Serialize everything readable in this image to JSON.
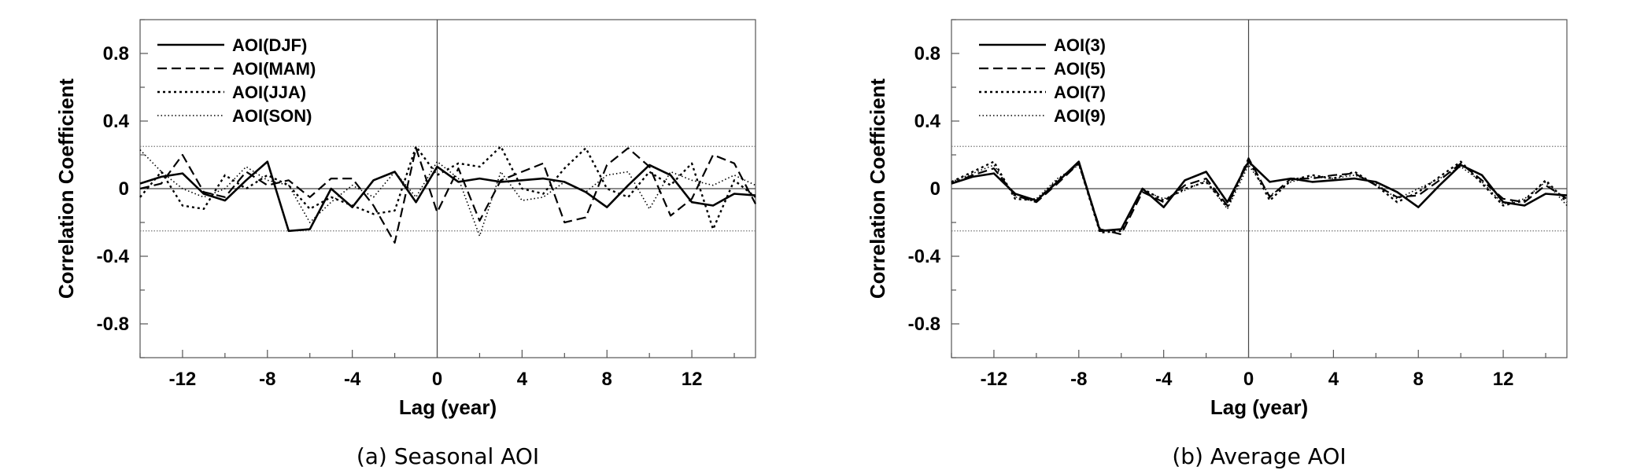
{
  "chart_data": [
    {
      "type": "line",
      "caption": "(a) Seasonal AOI",
      "xlabel": "Lag (year)",
      "ylabel": "Correlation Coefficient",
      "xlim": [
        -14,
        15
      ],
      "ylim": [
        -1.0,
        1.0
      ],
      "xticks": [
        -12,
        -8,
        -4,
        0,
        4,
        8,
        12
      ],
      "yticks": [
        0.8,
        0.4,
        0,
        -0.4,
        -0.8
      ],
      "legend_position": "top-left",
      "significance_level": 0.25,
      "x": [
        -14,
        -13,
        -12,
        -11,
        -10,
        -9,
        -8,
        -7,
        -6,
        -5,
        -4,
        -3,
        -2,
        -1,
        0,
        1,
        2,
        3,
        4,
        5,
        6,
        7,
        8,
        9,
        10,
        11,
        12,
        13,
        14,
        15
      ],
      "series": [
        {
          "name": "AOI(DJF)",
          "dash": "solid",
          "values": [
            0.03,
            0.07,
            0.09,
            -0.03,
            -0.07,
            0.05,
            0.16,
            -0.25,
            -0.24,
            0.0,
            -0.11,
            0.05,
            0.1,
            -0.08,
            0.13,
            0.04,
            0.06,
            0.04,
            0.05,
            0.06,
            0.04,
            -0.02,
            -0.11,
            0.02,
            0.14,
            0.08,
            -0.08,
            -0.1,
            -0.03,
            -0.04
          ]
        },
        {
          "name": "AOI(MAM)",
          "dash": "dashed",
          "values": [
            0.0,
            0.03,
            0.2,
            -0.02,
            -0.05,
            0.1,
            0.02,
            0.05,
            -0.05,
            0.06,
            0.06,
            -0.1,
            -0.32,
            0.24,
            -0.14,
            0.12,
            -0.19,
            0.05,
            0.1,
            0.15,
            -0.2,
            -0.17,
            0.14,
            0.24,
            0.13,
            -0.16,
            -0.06,
            0.2,
            0.15,
            -0.09
          ]
        },
        {
          "name": "AOI(JJA)",
          "dash": "dotted",
          "values": [
            -0.05,
            0.1,
            -0.1,
            -0.12,
            0.08,
            0.0,
            0.08,
            0.02,
            -0.12,
            -0.05,
            -0.1,
            -0.15,
            -0.13,
            0.25,
            0.08,
            0.15,
            0.13,
            0.25,
            0.0,
            -0.03,
            0.12,
            0.24,
            0.0,
            -0.05,
            0.1,
            0.02,
            0.15,
            -0.24,
            0.05,
            -0.05
          ]
        },
        {
          "name": "AOI(SON)",
          "dash": "fine",
          "values": [
            0.23,
            0.1,
            0.0,
            -0.05,
            0.0,
            0.13,
            0.05,
            0.02,
            -0.2,
            -0.08,
            0.02,
            -0.05,
            0.1,
            -0.05,
            0.16,
            0.06,
            -0.28,
            0.1,
            -0.07,
            -0.05,
            0.04,
            -0.02,
            0.08,
            0.1,
            -0.12,
            0.1,
            0.05,
            0.02,
            0.08,
            0.02
          ]
        }
      ]
    },
    {
      "type": "line",
      "caption": "(b) Average AOI",
      "xlabel": "Lag (year)",
      "ylabel": "Correlation Coefficient",
      "xlim": [
        -14,
        15
      ],
      "ylim": [
        -1.0,
        1.0
      ],
      "xticks": [
        -12,
        -8,
        -4,
        0,
        4,
        8,
        12
      ],
      "yticks": [
        0.8,
        0.4,
        0,
        -0.4,
        -0.8
      ],
      "legend_position": "top-left",
      "significance_level": 0.25,
      "x": [
        -14,
        -13,
        -12,
        -11,
        -10,
        -9,
        -8,
        -7,
        -6,
        -5,
        -4,
        -3,
        -2,
        -1,
        0,
        1,
        2,
        3,
        4,
        5,
        6,
        7,
        8,
        9,
        10,
        11,
        12,
        13,
        14,
        15
      ],
      "series": [
        {
          "name": "AOI(3)",
          "dash": "solid",
          "values": [
            0.03,
            0.07,
            0.09,
            -0.03,
            -0.07,
            0.04,
            0.16,
            -0.25,
            -0.24,
            0.0,
            -0.11,
            0.05,
            0.1,
            -0.08,
            0.16,
            0.04,
            0.06,
            0.04,
            0.05,
            0.06,
            0.04,
            -0.02,
            -0.11,
            0.02,
            0.14,
            0.08,
            -0.08,
            -0.1,
            -0.03,
            -0.04
          ]
        },
        {
          "name": "AOI(5)",
          "dash": "dashed",
          "values": [
            0.03,
            0.08,
            0.12,
            -0.04,
            -0.08,
            0.03,
            0.15,
            -0.24,
            -0.27,
            -0.02,
            -0.08,
            0.02,
            0.06,
            -0.1,
            0.18,
            -0.05,
            0.06,
            0.06,
            0.08,
            0.09,
            0.02,
            -0.05,
            -0.04,
            0.05,
            0.15,
            0.05,
            -0.06,
            -0.08,
            0.02,
            -0.06
          ]
        },
        {
          "name": "AOI(7)",
          "dash": "dotted",
          "values": [
            0.04,
            0.1,
            0.16,
            -0.06,
            -0.07,
            0.05,
            0.15,
            -0.26,
            -0.25,
            0.0,
            -0.07,
            0.0,
            0.04,
            -0.11,
            0.17,
            -0.07,
            0.05,
            0.08,
            0.06,
            0.1,
            0.02,
            -0.08,
            -0.02,
            0.07,
            0.16,
            0.03,
            -0.1,
            -0.07,
            0.05,
            -0.08
          ]
        },
        {
          "name": "AOI(9)",
          "dash": "fine",
          "values": [
            0.04,
            0.09,
            0.14,
            -0.05,
            -0.06,
            0.06,
            0.14,
            -0.25,
            -0.24,
            -0.01,
            -0.06,
            -0.01,
            0.05,
            -0.12,
            0.14,
            -0.04,
            0.04,
            0.07,
            0.06,
            0.08,
            0.03,
            -0.06,
            0.0,
            0.06,
            0.13,
            0.04,
            -0.09,
            -0.06,
            0.04,
            -0.1
          ]
        }
      ]
    }
  ]
}
